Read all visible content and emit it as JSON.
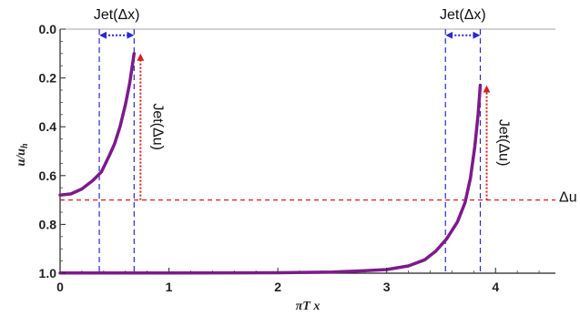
{
  "chart_data": {
    "type": "line",
    "xlabel": "πT x",
    "ylabel": "u/u",
    "ylabel_subscript": "h",
    "xlim": [
      0,
      4.55
    ],
    "ylim": [
      0,
      1.0
    ],
    "y_inverted": true,
    "x_ticks": [
      0,
      1,
      2,
      3,
      4
    ],
    "x_tick_labels": [
      "0",
      "1",
      "2",
      "3",
      "4"
    ],
    "y_ticks": [
      0.0,
      0.2,
      0.4,
      0.6,
      0.8,
      1.0
    ],
    "y_tick_labels": [
      "0.0",
      "0.2",
      "0.4",
      "0.6",
      "0.8",
      "1.0"
    ],
    "grid": false,
    "series": [
      {
        "color": "#7d1a8c",
        "x": [
          0,
          0.1,
          0.2,
          0.3,
          0.38,
          0.45,
          0.5,
          0.55,
          0.6,
          0.64,
          0.66,
          0.68
        ],
        "y": [
          0.68,
          0.675,
          0.655,
          0.62,
          0.585,
          0.52,
          0.47,
          0.4,
          0.31,
          0.22,
          0.16,
          0.1
        ]
      },
      {
        "color": "#7d1a8c",
        "x": [
          0,
          1.0,
          2.0,
          2.5,
          2.8,
          3.0,
          3.2,
          3.35,
          3.45,
          3.55,
          3.65,
          3.72,
          3.77,
          3.81,
          3.84,
          3.86
        ],
        "y": [
          0.999,
          0.999,
          0.998,
          0.995,
          0.99,
          0.985,
          0.97,
          0.945,
          0.91,
          0.86,
          0.79,
          0.71,
          0.61,
          0.48,
          0.35,
          0.23
        ]
      }
    ],
    "threshold": {
      "y": 0.7,
      "label": "Δu",
      "color": "#d62020"
    },
    "jets": [
      {
        "x0": 0.36,
        "x1": 0.68,
        "tip_y": 0.1,
        "x_label": "Jet(Δx)",
        "u_label": "Jet(Δu)"
      },
      {
        "x0": 3.54,
        "x1": 3.86,
        "tip_y": 0.23,
        "x_label": "Jet(Δx)",
        "u_label": "Jet(Δu)"
      }
    ],
    "colors": {
      "curve": "#7d1a8c",
      "jet_x": "#2a2ad0",
      "jet_u": "#d62020",
      "threshold": "#d62020"
    }
  }
}
